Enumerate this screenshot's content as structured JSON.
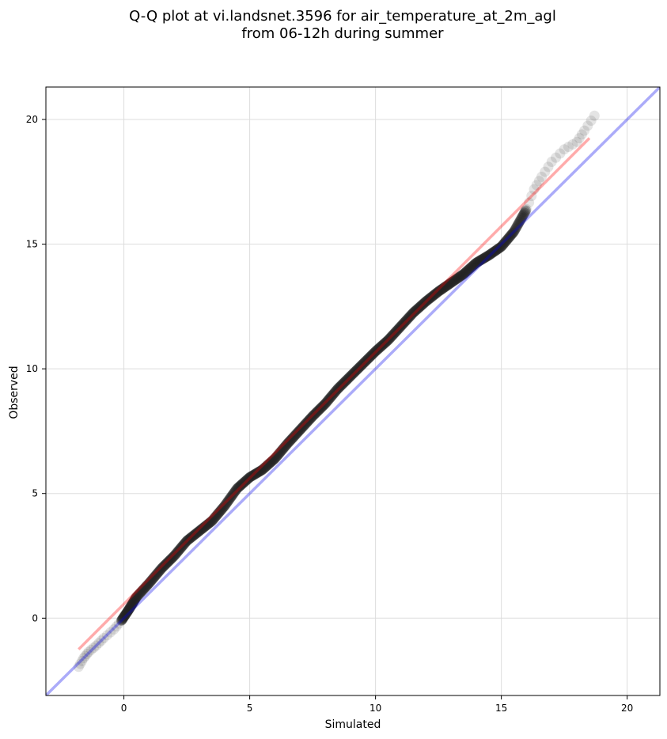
{
  "chart_data": {
    "type": "scatter",
    "title_line1": "Q-Q plot at vi.landsnet.3596 for air_temperature_at_2m_agl",
    "title_line2": "from 06-12h during summer",
    "xlabel": "Simulated",
    "ylabel": "Observed",
    "xlim": [
      -3.1,
      21.3
    ],
    "ylim": [
      -3.1,
      21.3
    ],
    "xticks": [
      0,
      5,
      10,
      15,
      20
    ],
    "yticks": [
      0,
      5,
      10,
      15,
      20
    ],
    "grid": true,
    "reference_line": {
      "label": "1:1",
      "color": "#0000ee",
      "points": [
        [
          -3.1,
          -3.1
        ],
        [
          21.3,
          21.3
        ]
      ]
    },
    "fit_line": {
      "color": "#ff0000",
      "points": [
        [
          -1.8,
          -1.25
        ],
        [
          18.5,
          19.25
        ]
      ]
    },
    "quantile_curve": [
      [
        -1.8,
        -1.95
      ],
      [
        -1.6,
        -1.6
      ],
      [
        -1.4,
        -1.35
      ],
      [
        -1.1,
        -1.1
      ],
      [
        -0.8,
        -0.8
      ],
      [
        -0.4,
        -0.45
      ],
      [
        -0.1,
        -0.1
      ],
      [
        0.2,
        0.35
      ],
      [
        0.5,
        0.85
      ],
      [
        1.0,
        1.4
      ],
      [
        1.5,
        2.0
      ],
      [
        2.0,
        2.5
      ],
      [
        2.5,
        3.1
      ],
      [
        3.0,
        3.5
      ],
      [
        3.5,
        3.9
      ],
      [
        4.0,
        4.5
      ],
      [
        4.5,
        5.2
      ],
      [
        5.0,
        5.65
      ],
      [
        5.5,
        5.95
      ],
      [
        6.0,
        6.4
      ],
      [
        6.5,
        7.0
      ],
      [
        7.0,
        7.55
      ],
      [
        7.5,
        8.1
      ],
      [
        8.0,
        8.6
      ],
      [
        8.5,
        9.2
      ],
      [
        9.0,
        9.7
      ],
      [
        9.5,
        10.2
      ],
      [
        10.0,
        10.7
      ],
      [
        10.5,
        11.15
      ],
      [
        11.0,
        11.7
      ],
      [
        11.5,
        12.25
      ],
      [
        12.0,
        12.7
      ],
      [
        12.5,
        13.1
      ],
      [
        13.0,
        13.45
      ],
      [
        13.5,
        13.8
      ],
      [
        14.0,
        14.25
      ],
      [
        14.5,
        14.55
      ],
      [
        15.0,
        14.9
      ],
      [
        15.5,
        15.5
      ],
      [
        16.0,
        16.4
      ],
      [
        16.3,
        17.2
      ],
      [
        16.6,
        17.7
      ],
      [
        17.0,
        18.3
      ],
      [
        17.5,
        18.8
      ],
      [
        18.0,
        19.1
      ],
      [
        18.3,
        19.55
      ],
      [
        18.7,
        20.15
      ]
    ],
    "colors": {
      "points": "#222222",
      "grid": "#dddddd"
    }
  }
}
